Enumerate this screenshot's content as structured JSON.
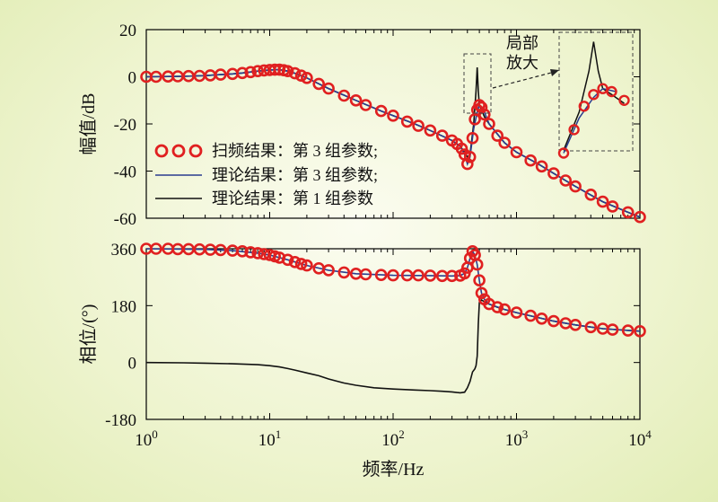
{
  "chart_data": [
    {
      "type": "line",
      "xscale": "log",
      "xlim": [
        1,
        10000
      ],
      "ylim": [
        -60,
        20
      ],
      "yticks": [
        "20",
        "0",
        "-20",
        "-40",
        "-60"
      ],
      "ylabel": "幅值/dB",
      "legend_position": "middle-left",
      "series": [
        {
          "name": "扫频结果：第 3 组参数;",
          "style": "markers",
          "color": "#e02020",
          "x": [
            1,
            1.2,
            1.5,
            1.8,
            2.2,
            2.7,
            3.3,
            4,
            5,
            6,
            7,
            8,
            9,
            10,
            11,
            12,
            13,
            14,
            16,
            18,
            20,
            25,
            30,
            40,
            50,
            60,
            80,
            100,
            130,
            160,
            200,
            250,
            300,
            330,
            360,
            380,
            400,
            420,
            440,
            460,
            480,
            500,
            520,
            550,
            600,
            700,
            800,
            1000,
            1300,
            1600,
            2000,
            2500,
            3000,
            4000,
            5000,
            6000,
            8000,
            10000
          ],
          "y": [
            0,
            0,
            0.1,
            0.2,
            0.3,
            0.4,
            0.6,
            0.9,
            1.2,
            1.6,
            2,
            2.4,
            2.7,
            2.9,
            3,
            3,
            2.8,
            2.4,
            1.5,
            0.5,
            -0.5,
            -3,
            -5,
            -8,
            -10,
            -12,
            -14.5,
            -16.5,
            -19,
            -20.8,
            -22.8,
            -25,
            -27,
            -28.5,
            -30.5,
            -33,
            -37,
            -34,
            -26,
            -18,
            -14,
            -12,
            -13,
            -16,
            -20,
            -25,
            -28,
            -32,
            -35.5,
            -38,
            -41,
            -44,
            -46.5,
            -50,
            -53,
            -55,
            -57.5,
            -59.5
          ]
        },
        {
          "name": "理论结果：第 3 组参数;",
          "style": "line",
          "color": "#2a3c8f",
          "x": [
            1,
            1.5,
            2,
            3,
            4,
            5,
            6,
            8,
            10,
            12,
            14,
            16,
            20,
            30,
            50,
            80,
            100,
            150,
            200,
            300,
            350,
            380,
            400,
            420,
            450,
            480,
            500,
            530,
            600,
            800,
            1000,
            1500,
            2000,
            3000,
            5000,
            8000,
            10000
          ],
          "y": [
            0,
            0.1,
            0.2,
            0.5,
            0.9,
            1.2,
            1.6,
            2.4,
            2.9,
            3,
            2.4,
            1.5,
            -0.5,
            -5,
            -10,
            -14.5,
            -16.5,
            -20,
            -22.8,
            -27,
            -29.5,
            -33,
            -37,
            -34,
            -22,
            -15,
            -12,
            -13,
            -20,
            -28,
            -32,
            -37,
            -41,
            -46.5,
            -53,
            -57.5,
            -59.5
          ]
        },
        {
          "name": "理论结果：第 1 组参数",
          "style": "line",
          "color": "#111111",
          "x": [
            1,
            1.5,
            2,
            3,
            4,
            5,
            6,
            8,
            10,
            12,
            14,
            16,
            20,
            30,
            50,
            80,
            100,
            150,
            200,
            300,
            350,
            380,
            400,
            420,
            450,
            470,
            480,
            490,
            500,
            520,
            550,
            600,
            800,
            1000,
            1500,
            2000,
            3000,
            5000,
            8000,
            10000
          ],
          "y": [
            0,
            0.1,
            0.2,
            0.5,
            0.9,
            1.2,
            1.6,
            2.4,
            2.9,
            3,
            2.4,
            1.5,
            -0.5,
            -5,
            -10,
            -14.5,
            -16.5,
            -20,
            -22.8,
            -27,
            -29.5,
            -32,
            -34,
            -33,
            -20,
            -6,
            4,
            -6,
            -12,
            -14,
            -17,
            -20,
            -28,
            -32,
            -37,
            -41,
            -46.5,
            -53,
            -57.5,
            -59.5
          ]
        }
      ],
      "annotations": {
        "zoom_label_line1": "局部",
        "zoom_label_line2": "放大"
      }
    },
    {
      "type": "line",
      "xscale": "log",
      "xlim": [
        1,
        10000
      ],
      "ylim": [
        -180,
        360
      ],
      "yticks": [
        "360",
        "180",
        "0",
        "-180"
      ],
      "xticks": [
        {
          "base": "10",
          "exp": "0"
        },
        {
          "base": "10",
          "exp": "1"
        },
        {
          "base": "10",
          "exp": "2"
        },
        {
          "base": "10",
          "exp": "3"
        },
        {
          "base": "10",
          "exp": "4"
        }
      ],
      "ylabel": "相位/(°)",
      "xlabel": "频率/Hz",
      "series": [
        {
          "style": "markers",
          "color": "#e02020",
          "x": [
            1,
            1.2,
            1.5,
            1.8,
            2.2,
            2.7,
            3.3,
            4,
            5,
            6,
            7,
            8,
            9,
            10,
            11,
            12,
            14,
            16,
            18,
            20,
            25,
            30,
            40,
            50,
            60,
            80,
            100,
            130,
            160,
            200,
            250,
            300,
            350,
            380,
            400,
            420,
            440,
            460,
            480,
            500,
            520,
            550,
            600,
            700,
            800,
            1000,
            1300,
            1600,
            2000,
            2500,
            3000,
            4000,
            5000,
            6000,
            8000,
            10000
          ],
          "y": [
            360,
            360,
            360,
            359,
            359,
            358,
            357,
            356,
            354,
            352,
            349,
            346,
            343,
            340,
            336,
            332,
            325,
            318,
            312,
            307,
            298,
            292,
            285,
            281,
            279,
            277,
            276,
            276,
            276,
            275,
            274,
            274,
            275,
            282,
            300,
            330,
            352,
            340,
            310,
            260,
            220,
            200,
            185,
            175,
            168,
            158,
            148,
            139,
            131,
            124,
            119,
            112,
            107,
            104,
            101,
            99
          ]
        },
        {
          "style": "line",
          "color": "#2a3c8f",
          "x": [
            1,
            2,
            3,
            5,
            8,
            10,
            14,
            20,
            30,
            50,
            100,
            200,
            300,
            350,
            380,
            400,
            420,
            440,
            460,
            480,
            500,
            520,
            550,
            600,
            800,
            1000,
            2000,
            3000,
            5000,
            10000
          ],
          "y": [
            360,
            359,
            358,
            354,
            346,
            340,
            325,
            307,
            292,
            281,
            276,
            275,
            274,
            275,
            282,
            300,
            330,
            352,
            340,
            310,
            260,
            220,
            200,
            185,
            168,
            158,
            131,
            119,
            107,
            99
          ]
        },
        {
          "style": "line",
          "color": "#111111",
          "x": [
            1,
            2,
            3,
            5,
            8,
            10,
            12,
            14,
            16,
            20,
            25,
            30,
            40,
            50,
            70,
            100,
            150,
            200,
            250,
            300,
            330,
            350,
            380,
            400,
            420,
            440,
            460,
            470,
            480,
            490,
            500,
            520,
            550,
            600,
            700,
            800,
            1000,
            2000,
            3000,
            5000,
            10000
          ],
          "y": [
            0,
            -1,
            -2,
            -4,
            -7,
            -10,
            -14,
            -19,
            -24,
            -33,
            -42,
            -52,
            -65,
            -72,
            -80,
            -84,
            -87,
            -89,
            -91,
            -93,
            -95,
            -96,
            -94,
            -80,
            -60,
            -30,
            -20,
            -10,
            20,
            120,
            190,
            198,
            192,
            185,
            175,
            168,
            158,
            131,
            119,
            107,
            99
          ]
        }
      ]
    }
  ]
}
